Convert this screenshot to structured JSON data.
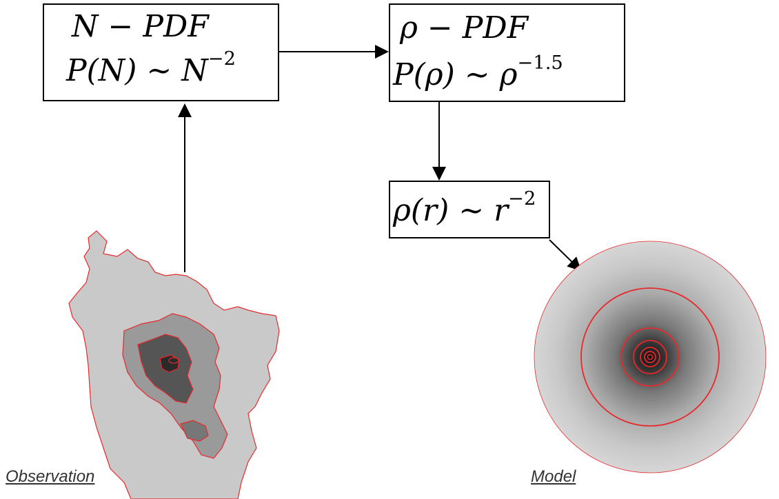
{
  "boxes": {
    "npdf": {
      "line1": "N − PDF",
      "line2_base": "P(N) ∼ N",
      "line2_exp": "−2"
    },
    "rhopdf": {
      "line1": "ρ − PDF",
      "line2_base": "P(ρ) ∼ ρ",
      "line2_exp": "−1.5"
    },
    "profile": {
      "base": "ρ(r) ∼ r",
      "exp": "−2"
    }
  },
  "captions": {
    "observation": "Observation",
    "model": "Model"
  },
  "colors": {
    "contour": "#e8282b",
    "arrow": "#000000"
  }
}
